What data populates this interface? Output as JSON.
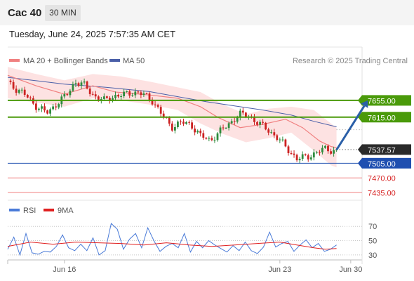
{
  "header": {
    "symbol": "Cac 40",
    "timeframe": "30 MIN"
  },
  "datetime": "Tuesday, June 24, 2025 7:57:35 AM CET",
  "legend": {
    "ma20_bb": "MA 20 + Bollinger Bands",
    "ma50": "MA 50",
    "credit": "Research © 2025 Trading Central"
  },
  "colors": {
    "candle_up": "#2e8b3d",
    "candle_down": "#cc2222",
    "ma20": "#f08080",
    "band_fill": "#fde2e2",
    "ma50": "#4a5fa8",
    "resistance": "#4a9a0a",
    "pivot": "#1f4fb0",
    "support": "#f08080",
    "rsi": "#4a7bd8",
    "rsi_ma": "#e02020",
    "arrow": "#2a5fa8"
  },
  "chart_data": {
    "type": "candlestick",
    "y_range": [
      7420,
      7727
    ],
    "x_labels": [
      {
        "label": "Jun 16",
        "index": 20
      },
      {
        "label": "Jun 23",
        "index": 96
      },
      {
        "label": "Jun 30",
        "index": 121
      }
    ],
    "last_price": 7537.57,
    "last_price_label": "7537.57",
    "levels": [
      {
        "role": "resistance",
        "value": 7655.0,
        "label": "7655.00"
      },
      {
        "role": "resistance",
        "value": 7615.0,
        "label": "7615.00"
      },
      {
        "role": "pivot",
        "value": 7505.0,
        "label": "7505.00"
      },
      {
        "role": "support",
        "value": 7470.0,
        "label": "7470.00"
      },
      {
        "role": "support",
        "value": 7435.0,
        "label": "7435.00"
      }
    ],
    "forecast_arrow": {
      "from": {
        "index": 116,
        "value": 7537
      },
      "to": {
        "index": 127,
        "value": 7655
      }
    },
    "key_closes": [
      7700,
      7680,
      7665,
      7640,
      7625,
      7645,
      7665,
      7700,
      7690,
      7665,
      7655,
      7665,
      7668,
      7675,
      7670,
      7655,
      7620,
      7592,
      7602,
      7598,
      7570,
      7560,
      7580,
      7600,
      7622,
      7618,
      7600,
      7585,
      7565,
      7540,
      7515,
      7520,
      7530,
      7540,
      7534,
      7537
    ],
    "key_index_step": 3.4,
    "ma20_points": [
      [
        0,
        7715
      ],
      [
        10,
        7690
      ],
      [
        20,
        7670
      ],
      [
        30,
        7690
      ],
      [
        38,
        7675
      ],
      [
        50,
        7668
      ],
      [
        60,
        7660
      ],
      [
        68,
        7640
      ],
      [
        74,
        7615
      ],
      [
        82,
        7590
      ],
      [
        90,
        7598
      ],
      [
        98,
        7610
      ],
      [
        104,
        7590
      ],
      [
        110,
        7558
      ],
      [
        114,
        7545
      ],
      [
        116,
        7542
      ]
    ],
    "ma50_points": [
      [
        0,
        7710
      ],
      [
        10,
        7702
      ],
      [
        20,
        7694
      ],
      [
        35,
        7686
      ],
      [
        50,
        7676
      ],
      [
        60,
        7664
      ],
      [
        70,
        7652
      ],
      [
        80,
        7642
      ],
      [
        90,
        7632
      ],
      [
        100,
        7620
      ],
      [
        108,
        7605
      ],
      [
        116,
        7592
      ]
    ],
    "bb_upper": [
      [
        0,
        7735
      ],
      [
        10,
        7718
      ],
      [
        20,
        7703
      ],
      [
        30,
        7718
      ],
      [
        40,
        7712
      ],
      [
        50,
        7700
      ],
      [
        60,
        7686
      ],
      [
        68,
        7675
      ],
      [
        76,
        7645
      ],
      [
        84,
        7622
      ],
      [
        92,
        7635
      ],
      [
        100,
        7640
      ],
      [
        108,
        7632
      ],
      [
        114,
        7600
      ],
      [
        116,
        7590
      ]
    ],
    "bb_lower": [
      [
        0,
        7660
      ],
      [
        10,
        7650
      ],
      [
        20,
        7640
      ],
      [
        30,
        7660
      ],
      [
        40,
        7655
      ],
      [
        50,
        7645
      ],
      [
        60,
        7632
      ],
      [
        68,
        7600
      ],
      [
        76,
        7575
      ],
      [
        84,
        7555
      ],
      [
        92,
        7565
      ],
      [
        100,
        7578
      ],
      [
        108,
        7535
      ],
      [
        114,
        7500
      ],
      [
        116,
        7495
      ]
    ],
    "rsi": {
      "ticks": [
        70,
        50,
        30
      ],
      "range": [
        25,
        82
      ],
      "values": [
        38,
        55,
        30,
        60,
        33,
        31,
        35,
        34,
        42,
        58,
        40,
        36,
        45,
        36,
        54,
        30,
        36,
        74,
        66,
        38,
        52,
        60,
        40,
        68,
        50,
        35,
        42,
        46,
        40,
        60,
        34,
        49,
        40,
        50,
        44,
        39,
        34,
        43,
        36,
        48,
        36,
        32,
        41,
        62,
        41,
        46,
        49,
        35,
        44,
        51,
        40,
        46,
        35,
        38,
        44
      ],
      "ma": [
        [
          0,
          42
        ],
        [
          8,
          48
        ],
        [
          16,
          45
        ],
        [
          24,
          48
        ],
        [
          32,
          47
        ],
        [
          40,
          46
        ],
        [
          48,
          44
        ],
        [
          56,
          47
        ],
        [
          64,
          44
        ],
        [
          72,
          42
        ],
        [
          80,
          44
        ],
        [
          88,
          46
        ],
        [
          96,
          48
        ],
        [
          102,
          44
        ],
        [
          108,
          40
        ],
        [
          112,
          38
        ],
        [
          116,
          39
        ]
      ]
    },
    "rsi_legend": {
      "rsi": "RSI",
      "ma": "9MA"
    }
  }
}
